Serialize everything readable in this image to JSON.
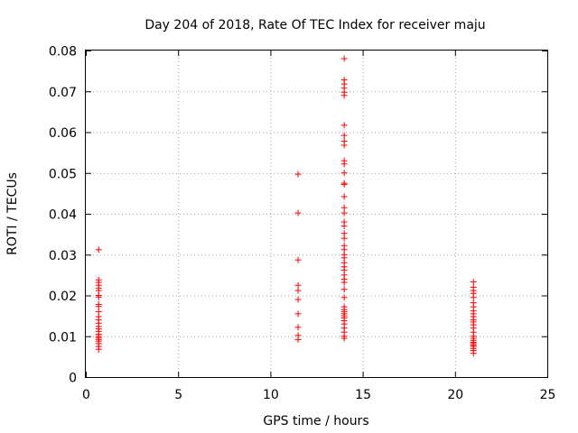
{
  "chart_data": {
    "type": "scatter",
    "title": "Day 204 of 2018, Rate Of TEC Index for receiver maju",
    "xlabel": "GPS time / hours",
    "ylabel": "ROTI / TECUs",
    "xlim": [
      0,
      25
    ],
    "ylim": [
      0,
      0.08
    ],
    "x_ticks": [
      "0",
      "5",
      "10",
      "15",
      "20",
      "25"
    ],
    "y_ticks": [
      "0",
      "0.01",
      "0.02",
      "0.03",
      "0.04",
      "0.05",
      "0.06",
      "0.07",
      "0.08"
    ],
    "grid": true,
    "marker": "+",
    "color": "#ff0000",
    "series": [
      {
        "values": [
          [
            0.7,
            0.0312
          ],
          [
            0.7,
            0.0238
          ],
          [
            0.7,
            0.0232
          ],
          [
            0.7,
            0.0225
          ],
          [
            0.7,
            0.0218
          ],
          [
            0.7,
            0.0212
          ],
          [
            0.7,
            0.02
          ],
          [
            0.7,
            0.0196
          ],
          [
            0.7,
            0.0178
          ],
          [
            0.7,
            0.0173
          ],
          [
            0.7,
            0.016
          ],
          [
            0.7,
            0.0148
          ],
          [
            0.7,
            0.014
          ],
          [
            0.7,
            0.0132
          ],
          [
            0.7,
            0.0124
          ],
          [
            0.7,
            0.0118
          ],
          [
            0.7,
            0.0112
          ],
          [
            0.7,
            0.0105
          ],
          [
            0.7,
            0.01
          ],
          [
            0.7,
            0.0096
          ],
          [
            0.7,
            0.0092
          ],
          [
            0.7,
            0.0088
          ],
          [
            0.7,
            0.0082
          ],
          [
            0.7,
            0.0075
          ],
          [
            0.7,
            0.0068
          ],
          [
            11.5,
            0.0497
          ],
          [
            11.5,
            0.0402
          ],
          [
            11.5,
            0.0287
          ],
          [
            11.5,
            0.0225
          ],
          [
            11.5,
            0.0212
          ],
          [
            11.5,
            0.019
          ],
          [
            11.5,
            0.0155
          ],
          [
            11.5,
            0.0122
          ],
          [
            11.5,
            0.0102
          ],
          [
            11.5,
            0.0092
          ],
          [
            14.0,
            0.078
          ],
          [
            14.0,
            0.0728
          ],
          [
            14.0,
            0.0718
          ],
          [
            14.0,
            0.0708
          ],
          [
            14.0,
            0.0698
          ],
          [
            14.0,
            0.069
          ],
          [
            14.0,
            0.0617
          ],
          [
            14.0,
            0.0592
          ],
          [
            14.0,
            0.0578
          ],
          [
            14.0,
            0.0568
          ],
          [
            14.0,
            0.053
          ],
          [
            14.0,
            0.0522
          ],
          [
            14.0,
            0.05
          ],
          [
            14.0,
            0.0475
          ],
          [
            14.0,
            0.0472
          ],
          [
            14.0,
            0.0442
          ],
          [
            14.0,
            0.0415
          ],
          [
            14.0,
            0.0402
          ],
          [
            14.0,
            0.038
          ],
          [
            14.0,
            0.037
          ],
          [
            14.0,
            0.0352
          ],
          [
            14.0,
            0.034
          ],
          [
            14.0,
            0.0322
          ],
          [
            14.0,
            0.0312
          ],
          [
            14.0,
            0.03
          ],
          [
            14.0,
            0.0292
          ],
          [
            14.0,
            0.028
          ],
          [
            14.0,
            0.027
          ],
          [
            14.0,
            0.0262
          ],
          [
            14.0,
            0.025
          ],
          [
            14.0,
            0.024
          ],
          [
            14.0,
            0.0232
          ],
          [
            14.0,
            0.0215
          ],
          [
            14.0,
            0.0195
          ],
          [
            14.0,
            0.0172
          ],
          [
            14.0,
            0.0165
          ],
          [
            14.0,
            0.016
          ],
          [
            14.0,
            0.0155
          ],
          [
            14.0,
            0.015
          ],
          [
            14.0,
            0.0145
          ],
          [
            14.0,
            0.0138
          ],
          [
            14.0,
            0.013
          ],
          [
            14.0,
            0.012
          ],
          [
            14.0,
            0.011
          ],
          [
            14.0,
            0.01
          ],
          [
            14.0,
            0.0095
          ],
          [
            21.0,
            0.0233
          ],
          [
            21.0,
            0.022
          ],
          [
            21.0,
            0.0212
          ],
          [
            21.0,
            0.0205
          ],
          [
            21.0,
            0.0195
          ],
          [
            21.0,
            0.0182
          ],
          [
            21.0,
            0.0172
          ],
          [
            21.0,
            0.0162
          ],
          [
            21.0,
            0.0155
          ],
          [
            21.0,
            0.0148
          ],
          [
            21.0,
            0.014
          ],
          [
            21.0,
            0.0135
          ],
          [
            21.0,
            0.0128
          ],
          [
            21.0,
            0.012
          ],
          [
            21.0,
            0.011
          ],
          [
            21.0,
            0.01
          ],
          [
            21.0,
            0.0095
          ],
          [
            21.0,
            0.009
          ],
          [
            21.0,
            0.0085
          ],
          [
            21.0,
            0.0082
          ],
          [
            21.0,
            0.0078
          ],
          [
            21.0,
            0.0075
          ],
          [
            21.0,
            0.007
          ],
          [
            21.0,
            0.0065
          ],
          [
            21.0,
            0.0058
          ]
        ]
      }
    ]
  }
}
